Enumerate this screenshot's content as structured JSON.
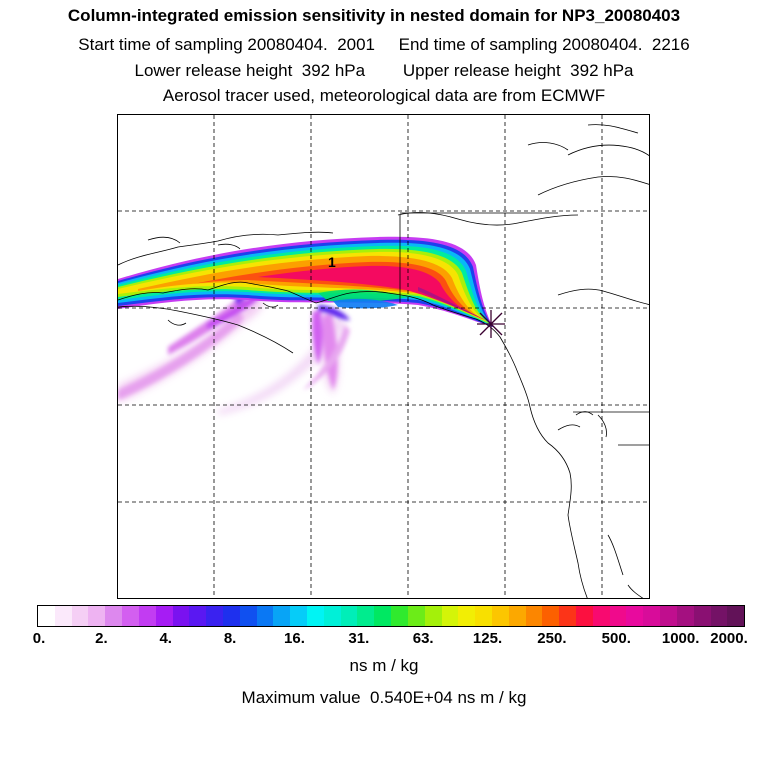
{
  "header": {
    "title": "Column-integrated emission sensitivity in nested domain for NP3_20080403",
    "line2": "Start time of sampling 20080404.  2001     End time of sampling 20080404.  2216",
    "line3": "Lower release height  392 hPa        Upper release height  392 hPa",
    "line4": "Aerosol tracer used, meteorological data are from ECMWF"
  },
  "map": {
    "marker_label": "1",
    "grid": "dashed",
    "region": "Alaska and western North America, nested domain"
  },
  "colorbar": {
    "tick_labels": [
      "0.",
      "2.",
      "4.",
      "8.",
      "16.",
      "31.",
      "63.",
      "125.",
      "250.",
      "500.",
      "1000.",
      "2000."
    ],
    "colors": [
      "#ffffff",
      "#fbe9fb",
      "#f5cff5",
      "#eeb3f2",
      "#dd88ee",
      "#d35ff0",
      "#c23cf2",
      "#a61cf4",
      "#7a12f0",
      "#5a18f2",
      "#3a22f0",
      "#1e30ee",
      "#1050f0",
      "#0a78f4",
      "#08a4f6",
      "#06ccf8",
      "#00f4f4",
      "#00f0d8",
      "#00eeb8",
      "#00ec8e",
      "#00e862",
      "#30ea2e",
      "#6cec18",
      "#a4f00a",
      "#d4f408",
      "#f2ee04",
      "#f8e000",
      "#fcc600",
      "#fca800",
      "#fc8600",
      "#fc6000",
      "#fc3418",
      "#fc1040",
      "#f80a70",
      "#f00a8c",
      "#e80a9e",
      "#d80c9a",
      "#c00e8e",
      "#a41080",
      "#8a1072",
      "#741266",
      "#621258"
    ],
    "unit": "ns m / kg"
  },
  "footer": {
    "max_value_text": "Maximum value  0.540E+04 ns m / kg"
  }
}
